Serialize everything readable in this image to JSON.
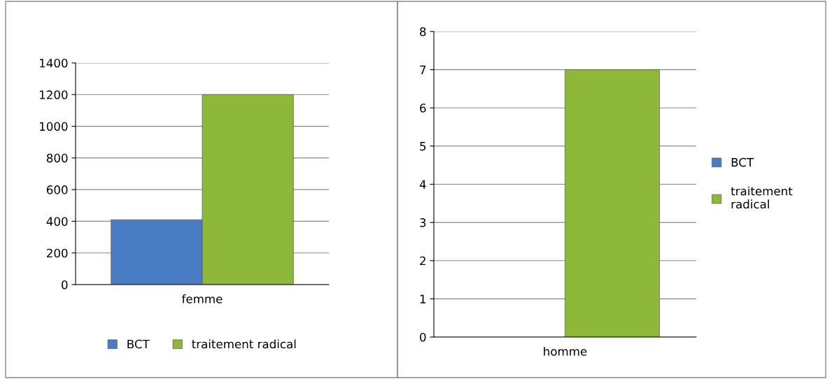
{
  "chart_data": [
    {
      "type": "bar",
      "categories": [
        "femme"
      ],
      "series": [
        {
          "name": "BCT",
          "color": "#4a7cc4",
          "values": [
            410
          ]
        },
        {
          "name": "traitement radical",
          "color": "#8db83a",
          "values": [
            1200
          ]
        }
      ],
      "ylim": [
        0,
        1400
      ],
      "yticks": [
        0,
        200,
        400,
        600,
        800,
        1000,
        1200,
        1400
      ],
      "grid": "y",
      "legend": "bottom"
    },
    {
      "type": "bar",
      "categories": [
        "homme"
      ],
      "series": [
        {
          "name": "BCT",
          "color": "#4a7cc4",
          "values": [
            null
          ]
        },
        {
          "name": "traitement radical",
          "color": "#8db83a",
          "values": [
            7
          ]
        }
      ],
      "ylim": [
        0,
        8
      ],
      "yticks": [
        0,
        1,
        2,
        3,
        4,
        5,
        6,
        7,
        8
      ],
      "grid": "y",
      "legend": "right"
    }
  ]
}
